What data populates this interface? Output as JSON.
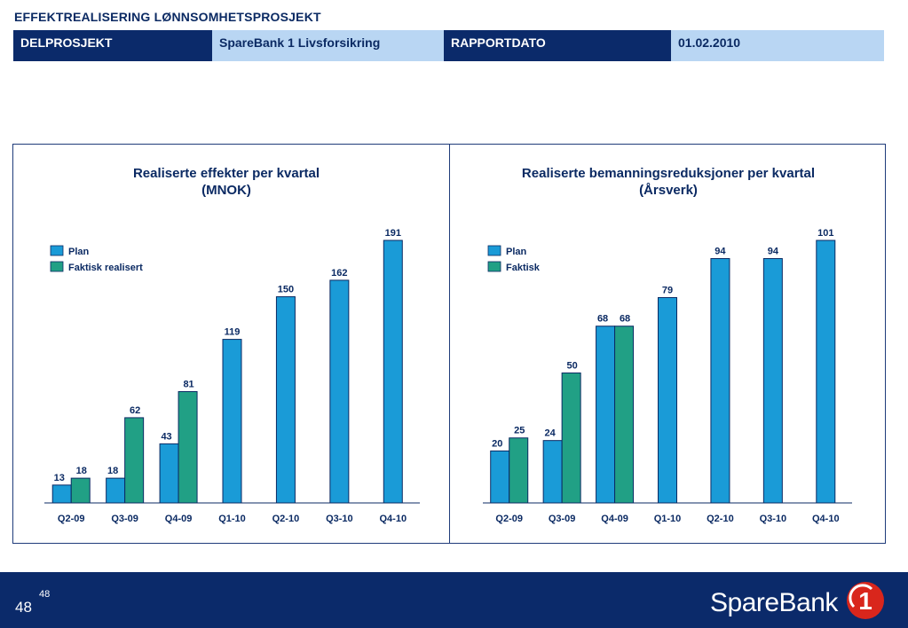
{
  "header": {
    "title": "EFFEKTREALISERING LØNNSOMHETSPROSJEKT",
    "cells": [
      "DELPROSJEKT",
      "SpareBank 1 Livsforsikring",
      "RAPPORTDATO",
      "01.02.2010"
    ]
  },
  "colors": {
    "plan": "#1a9bd7",
    "actual": "#21a085",
    "navy": "#0b2a6a",
    "light_blue": "#b9d6f3",
    "logo_red": "#d9261c"
  },
  "chart_data": [
    {
      "type": "bar",
      "title": "Realiserte effekter per kvartal",
      "subtitle": "(MNOK)",
      "categories": [
        "Q2-09",
        "Q3-09",
        "Q4-09",
        "Q1-10",
        "Q2-10",
        "Q3-10",
        "Q4-10"
      ],
      "series": [
        {
          "name": "Plan",
          "values": [
            13,
            18,
            43,
            119,
            150,
            162,
            191
          ]
        },
        {
          "name": "Faktisk realisert",
          "values": [
            18,
            62,
            81,
            null,
            null,
            null,
            null
          ]
        }
      ],
      "ylim": [
        0,
        191
      ],
      "grid": false,
      "legend": "top-left"
    },
    {
      "type": "bar",
      "title": "Realiserte bemanningsreduksjoner per kvartal",
      "subtitle": "(Årsverk)",
      "categories": [
        "Q2-09",
        "Q3-09",
        "Q4-09",
        "Q1-10",
        "Q2-10",
        "Q3-10",
        "Q4-10"
      ],
      "series": [
        {
          "name": "Plan",
          "values": [
            20,
            24,
            68,
            79,
            94,
            94,
            101
          ]
        },
        {
          "name": "Faktisk",
          "values": [
            25,
            50,
            68,
            null,
            null,
            null,
            null
          ]
        }
      ],
      "ylim": [
        0,
        101
      ],
      "grid": false,
      "legend": "top-left"
    }
  ],
  "footer": {
    "page_number": "48",
    "page_sup": "48",
    "logo_text": "SpareBank",
    "logo_mark": "1"
  }
}
